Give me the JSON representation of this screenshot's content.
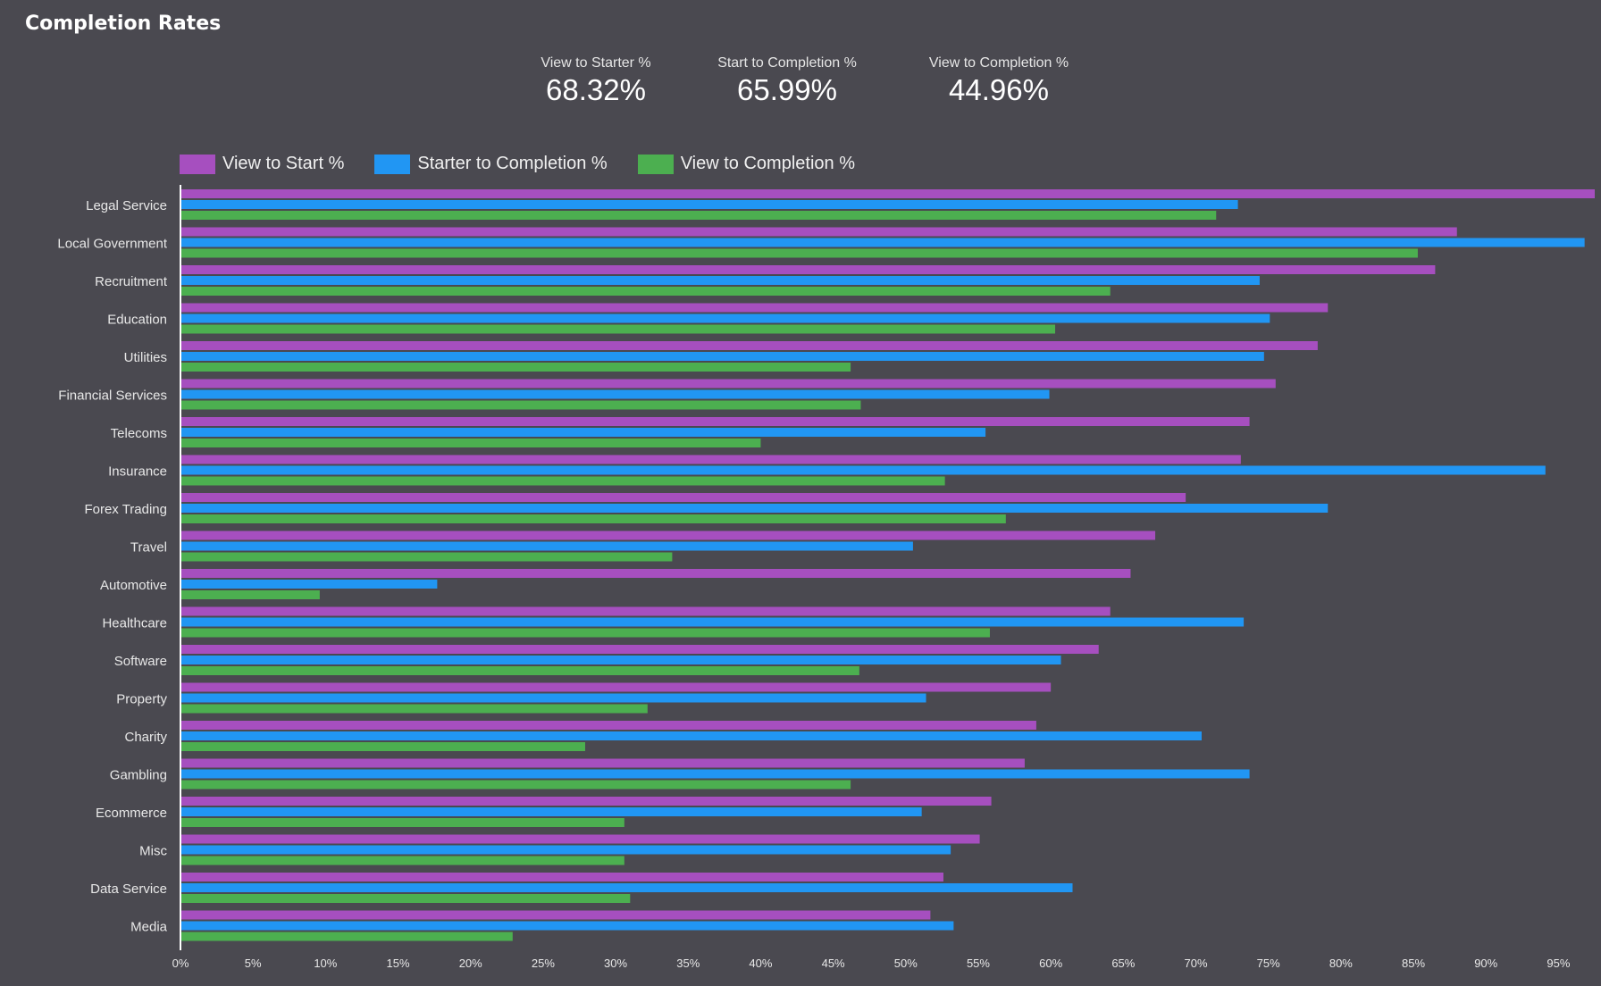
{
  "title": "Completion Rates",
  "kpis": [
    {
      "label": "View to Starter %",
      "value": "68.32%"
    },
    {
      "label": "Start to Completion %",
      "value": "65.99%"
    },
    {
      "label": "View to Completion %",
      "value": "44.96%"
    }
  ],
  "colors": {
    "background": "#4a4950",
    "view_to_start": "#a64fbf",
    "starter_to_completion": "#2196f3",
    "view_to_completion": "#4caf50",
    "axis": "#ffffff",
    "text": "#e8e8e8"
  },
  "chart_data": {
    "type": "bar",
    "orientation": "horizontal",
    "categories": [
      "Legal Service",
      "Local Government",
      "Recruitment",
      "Education",
      "Utilities",
      "Financial Services",
      "Telecoms",
      "Insurance",
      "Forex Trading",
      "Travel",
      "Automotive",
      "Healthcare",
      "Software",
      "Property",
      "Charity",
      "Gambling",
      "Ecommerce",
      "Misc",
      "Data Service",
      "Media"
    ],
    "series": [
      {
        "name": "View to Start %",
        "values": [
          97.5,
          88,
          86.5,
          79.1,
          78.4,
          75.5,
          73.7,
          73.1,
          69.3,
          67.2,
          65.5,
          64.1,
          63.3,
          60,
          59,
          58.2,
          55.9,
          55.1,
          52.6,
          51.7
        ]
      },
      {
        "name": "Starter to Completion %",
        "values": [
          72.9,
          96.8,
          74.4,
          75.1,
          74.7,
          59.9,
          55.5,
          94.1,
          79.1,
          50.5,
          17.7,
          73.3,
          60.7,
          51.4,
          70.4,
          73.7,
          51.1,
          53.1,
          61.5,
          53.3
        ]
      },
      {
        "name": "View to Completion %",
        "values": [
          71.4,
          85.3,
          64.1,
          60.3,
          46.2,
          46.9,
          40,
          52.7,
          56.9,
          33.9,
          9.6,
          55.8,
          46.8,
          32.2,
          27.9,
          46.2,
          30.6,
          30.6,
          31,
          22.9
        ]
      }
    ],
    "x_ticks": [
      "0%",
      "5%",
      "10%",
      "15%",
      "20%",
      "25%",
      "30%",
      "35%",
      "40%",
      "45%",
      "50%",
      "55%",
      "60%",
      "65%",
      "70%",
      "75%",
      "80%",
      "85%",
      "90%",
      "95%"
    ],
    "xlim": [
      0,
      97.5
    ],
    "legend_position": "top-left",
    "grid": false
  }
}
